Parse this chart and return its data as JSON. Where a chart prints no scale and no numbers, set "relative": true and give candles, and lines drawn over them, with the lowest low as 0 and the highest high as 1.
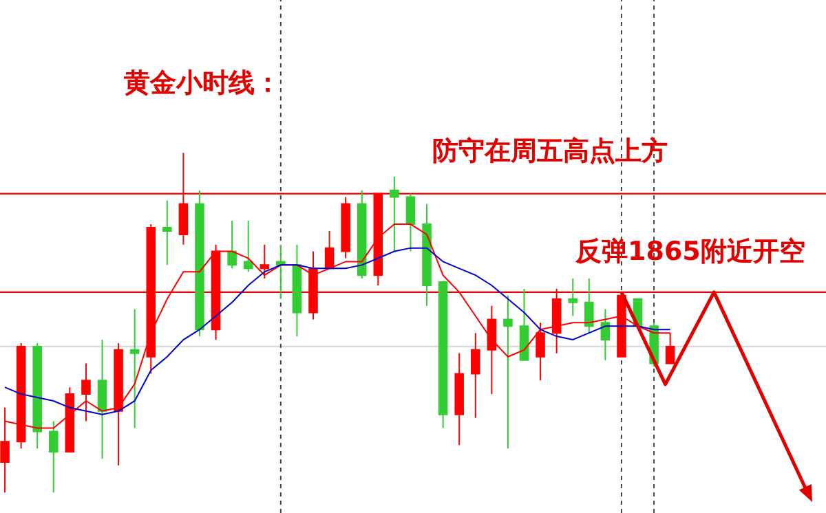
{
  "chart_data": {
    "type": "candlestick",
    "title": "黄金小时线：",
    "relative": true,
    "annotations": [
      "防守在周五高点上方",
      "反弹1865附近开空"
    ],
    "categories": [
      null,
      null,
      null,
      null,
      null,
      null,
      null,
      null,
      null,
      null,
      null,
      null,
      null,
      null,
      null,
      null,
      null,
      null,
      null,
      null,
      null,
      null,
      null,
      null,
      null,
      null,
      null,
      null,
      null,
      null,
      null,
      null,
      null,
      null,
      null,
      null,
      null,
      null,
      null,
      null,
      null,
      null
    ],
    "colors": [
      "#ff0000",
      "#ff0000",
      "#33cc33",
      "#33cc33",
      "#ff0000",
      "#ff0000",
      "#33cc33",
      "#ff0000",
      "#33cc33",
      "#ff0000",
      "#33cc33",
      "#ff0000",
      "#33cc33",
      "#ff0000",
      "#33cc33",
      "#33cc33",
      "#ff0000",
      "#33cc33",
      "#33cc33",
      "#ff0000",
      "#ff0000",
      "#ff0000",
      "#33cc33",
      "#ff0000",
      "#33cc33",
      "#33cc33",
      "#33cc33",
      "#33cc33",
      "#ff0000",
      "#ff0000",
      "#ff0000",
      "#33cc33",
      "#33cc33",
      "#ff0000",
      "#ff0000",
      "#33cc33",
      "#33cc33",
      "#33cc33",
      "#ff0000",
      "#33cc33",
      "#33cc33",
      "#ff0000"
    ],
    "ohlc": [
      [
        0.09,
        0.25,
        0.0,
        0.15
      ],
      [
        0.15,
        0.44,
        0.13,
        0.43
      ],
      [
        0.43,
        0.44,
        0.13,
        0.18
      ],
      [
        0.18,
        0.21,
        0.0,
        0.12
      ],
      [
        0.12,
        0.31,
        0.12,
        0.29
      ],
      [
        0.29,
        0.38,
        0.21,
        0.33
      ],
      [
        0.33,
        0.45,
        0.1,
        0.24
      ],
      [
        0.24,
        0.44,
        0.08,
        0.42
      ],
      [
        0.42,
        0.54,
        0.19,
        0.41
      ],
      [
        0.4,
        0.79,
        0.35,
        0.78
      ],
      [
        0.78,
        0.86,
        0.67,
        0.77
      ],
      [
        0.76,
        1.0,
        0.73,
        0.85
      ],
      [
        0.85,
        0.89,
        0.46,
        0.48
      ],
      [
        0.48,
        0.73,
        0.45,
        0.71
      ],
      [
        0.71,
        0.8,
        0.66,
        0.67
      ],
      [
        0.68,
        0.8,
        0.65,
        0.66
      ],
      [
        0.66,
        0.73,
        0.63,
        0.67
      ],
      [
        0.68,
        0.73,
        0.57,
        0.67
      ],
      [
        0.67,
        0.73,
        0.46,
        0.53
      ],
      [
        0.53,
        0.71,
        0.51,
        0.66
      ],
      [
        0.66,
        0.77,
        0.66,
        0.72
      ],
      [
        0.71,
        0.87,
        0.69,
        0.85
      ],
      [
        0.85,
        0.89,
        0.63,
        0.64
      ],
      [
        0.64,
        0.88,
        0.61,
        0.88
      ],
      [
        0.89,
        0.93,
        0.71,
        0.87
      ],
      [
        0.87,
        0.88,
        0.71,
        0.79
      ],
      [
        0.79,
        0.85,
        0.55,
        0.61
      ],
      [
        0.62,
        0.62,
        0.19,
        0.23
      ],
      [
        0.23,
        0.41,
        0.14,
        0.35
      ],
      [
        0.35,
        0.47,
        0.22,
        0.42
      ],
      [
        0.42,
        0.55,
        0.29,
        0.51
      ],
      [
        0.51,
        0.58,
        0.13,
        0.49
      ],
      [
        0.49,
        0.6,
        0.39,
        0.39
      ],
      [
        0.4,
        0.5,
        0.33,
        0.47
      ],
      [
        0.47,
        0.6,
        0.41,
        0.57
      ],
      [
        0.57,
        0.63,
        0.52,
        0.56
      ],
      [
        0.56,
        0.63,
        0.47,
        0.49
      ],
      [
        0.5,
        0.54,
        0.39,
        0.45
      ],
      [
        0.4,
        0.59,
        0.4,
        0.58
      ],
      [
        0.57,
        0.57,
        0.49,
        0.49
      ],
      [
        0.49,
        0.5,
        0.37,
        0.38
      ],
      [
        0.38,
        0.47,
        0.38,
        0.43
      ]
    ],
    "series": [
      {
        "type": "line",
        "color": "#ff0000",
        "values": [
          0.21,
          0.2,
          0.19,
          0.19,
          0.23,
          0.27,
          0.24,
          0.25,
          0.32,
          0.47,
          0.57,
          0.65,
          0.65,
          0.71,
          0.71,
          0.69,
          0.64,
          0.67,
          0.67,
          0.64,
          0.66,
          0.68,
          0.68,
          0.75,
          0.79,
          0.79,
          0.76,
          0.64,
          0.59,
          0.52,
          0.45,
          0.4,
          0.42,
          0.48,
          0.49,
          0.5,
          0.5,
          0.51,
          0.52,
          0.49,
          0.47,
          0.47
        ]
      },
      {
        "type": "line",
        "color": "#0000cc",
        "values": [
          0.31,
          0.29,
          0.28,
          0.27,
          0.25,
          0.24,
          0.23,
          0.24,
          0.27,
          0.36,
          0.4,
          0.45,
          0.48,
          0.52,
          0.56,
          0.61,
          0.65,
          0.67,
          0.67,
          0.66,
          0.66,
          0.66,
          0.67,
          0.69,
          0.71,
          0.72,
          0.72,
          0.68,
          0.66,
          0.64,
          0.61,
          0.57,
          0.53,
          0.48,
          0.46,
          0.45,
          0.47,
          0.49,
          0.49,
          0.49,
          0.48,
          0.48
        ]
      }
    ],
    "ref_lines": [
      {
        "axis": "y",
        "value": 0.88,
        "color": "#e00000"
      },
      {
        "axis": "y",
        "value": 0.59,
        "color": "#e00000"
      },
      {
        "axis": "y",
        "value": 0.43,
        "color": "#d8d8d8"
      }
    ],
    "grid": "x"
  }
}
